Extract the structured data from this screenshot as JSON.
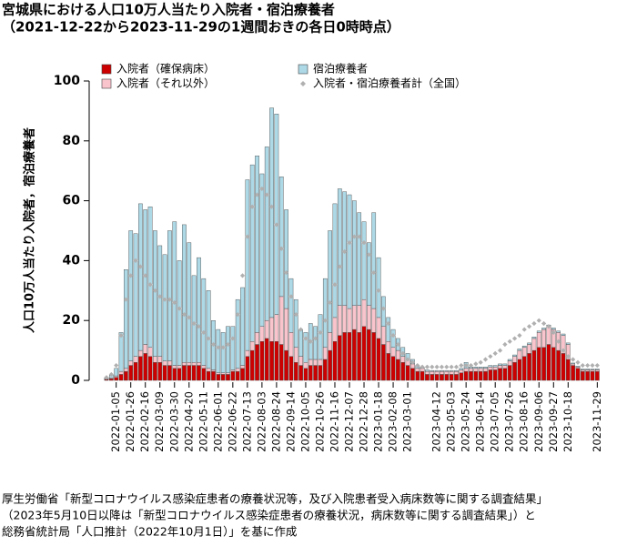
{
  "chart_data": {
    "type": "bar",
    "stacked": true,
    "title": [
      "宮城県における人口10万人当たり入院者・宿泊療養者",
      "（2021-12-22から2023-11-29の1週間おきの各日0時時点）"
    ],
    "y_label": "人口10万人当たり入院者，宿泊療養者",
    "ylim": [
      0,
      100
    ],
    "yticks": [
      0,
      20,
      40,
      60,
      80,
      100
    ],
    "grid": false,
    "categories": [
      null,
      null,
      "2022-01-05",
      null,
      null,
      "2022-01-26",
      null,
      null,
      "2022-02-16",
      null,
      null,
      "2022-03-09",
      null,
      null,
      "2022-03-30",
      null,
      null,
      "2022-04-20",
      null,
      null,
      "2022-05-11",
      null,
      null,
      "2022-06-01",
      null,
      null,
      "2022-06-22",
      null,
      null,
      "2022-07-13",
      null,
      null,
      "2022-08-03",
      null,
      null,
      "2022-08-24",
      null,
      null,
      "2022-09-14",
      null,
      null,
      "2022-10-05",
      null,
      null,
      "2022-10-26",
      null,
      null,
      "2022-11-16",
      null,
      null,
      "2022-12-07",
      null,
      null,
      "2022-12-28",
      null,
      null,
      "2023-01-18",
      null,
      null,
      "2023-02-08",
      null,
      null,
      "2023-03-01",
      null,
      null,
      null,
      null,
      null,
      "2023-04-12",
      null,
      null,
      "2023-05-03",
      null,
      null,
      "2023-05-24",
      null,
      null,
      "2023-06-14",
      null,
      null,
      "2023-07-05",
      null,
      null,
      "2023-07-26",
      null,
      null,
      "2023-08-16",
      null,
      null,
      "2023-09-06",
      null,
      null,
      "2023-09-27",
      null,
      null,
      "2023-10-18",
      null,
      null,
      null,
      null,
      null,
      "2023-11-29"
    ],
    "series": [
      {
        "name": "入院者（確保病床）",
        "color": "#cc0000",
        "values": [
          0.3,
          0.5,
          1,
          2,
          3,
          5,
          6,
          8,
          9,
          8,
          6,
          6,
          5,
          5,
          4,
          4,
          5,
          5,
          5,
          5,
          4,
          3,
          3,
          2,
          2,
          2,
          3,
          3,
          4,
          8,
          10,
          12,
          13,
          14,
          13,
          13,
          12,
          10,
          8,
          6,
          5,
          4,
          5,
          5,
          5,
          7,
          10,
          13,
          15,
          16,
          16,
          17,
          16,
          18,
          17,
          16,
          14,
          12,
          9,
          8,
          7,
          6,
          5,
          4,
          3,
          3,
          2,
          2,
          2,
          2,
          2,
          2,
          2,
          2.5,
          3,
          3,
          3,
          3,
          3,
          3.5,
          3.5,
          4,
          4,
          5,
          6,
          7,
          8,
          9,
          10,
          11,
          11,
          12,
          11,
          10,
          9,
          7,
          5,
          4,
          3,
          3,
          3,
          3
        ]
      },
      {
        "name": "入院者（それ以外）",
        "color": "#f9c4cc",
        "values": [
          0.2,
          0.3,
          0.5,
          1,
          1,
          1.5,
          2,
          2,
          3,
          3,
          2,
          2,
          1.5,
          1.5,
          1,
          1,
          1,
          1,
          1,
          1,
          1,
          1,
          0.5,
          0.5,
          0.5,
          0.5,
          0.5,
          1,
          1,
          2,
          3,
          4,
          5,
          6,
          8,
          9,
          16,
          14,
          8,
          5,
          3,
          2,
          2,
          2,
          2,
          4,
          6,
          8,
          10,
          9,
          8,
          8,
          9,
          9,
          8,
          8,
          7,
          6,
          4,
          3,
          3,
          2,
          2,
          1.5,
          1,
          1,
          1,
          1,
          1,
          1,
          1,
          1,
          1,
          1,
          1,
          1,
          1,
          1,
          1,
          1,
          1,
          1,
          1,
          1.5,
          2,
          3,
          3,
          3,
          4,
          5,
          6,
          6,
          6,
          6,
          6,
          5,
          0.5,
          0.5,
          0.5,
          0.5,
          0.5,
          0.5
        ]
      },
      {
        "name": "宿泊療養者",
        "color": "#add8e6",
        "values": [
          0.5,
          1,
          2.5,
          13,
          33,
          43.5,
          41,
          49,
          45,
          47,
          42,
          37,
          35.5,
          43.5,
          48,
          35,
          46,
          40,
          29,
          35,
          29,
          26,
          16.5,
          14.5,
          13.5,
          15.5,
          14.5,
          23,
          26,
          57,
          59,
          59,
          51,
          58,
          70,
          67,
          40,
          33,
          18,
          16,
          9,
          10,
          12,
          11,
          15,
          23,
          34,
          38,
          39,
          38,
          38,
          35,
          31,
          26,
          21,
          32,
          20,
          10,
          8,
          6,
          4,
          3,
          2,
          1.5,
          1,
          0.5,
          0.5,
          0.3,
          0.3,
          0.3,
          0.3,
          0.3,
          0.3,
          0.5,
          2,
          0.5,
          0.5,
          0.5,
          0.5,
          0.5,
          0.5,
          0.5,
          0.5,
          0.5,
          0.5,
          0.5,
          0.5,
          0.5,
          0.5,
          0.5,
          0.5,
          0.5,
          0.5,
          0.5,
          0.5,
          0.5,
          0.3,
          0.3,
          0.3,
          0.3,
          0.3,
          0.3
        ]
      },
      {
        "name": "入院者・宿泊療養者計（全国）",
        "color": "#b0b0b0",
        "type": "scatter",
        "values": [
          1,
          2,
          5,
          15,
          27,
          35,
          40,
          38,
          35,
          32,
          30,
          28,
          27,
          27,
          26,
          24,
          22,
          21,
          19,
          18,
          16,
          14,
          12,
          11,
          11,
          12,
          14,
          22,
          35,
          48,
          58,
          62,
          64,
          62,
          58,
          52,
          44,
          36,
          28,
          22,
          17,
          14,
          13,
          14,
          16,
          20,
          26,
          32,
          38,
          43,
          46,
          48,
          48,
          46,
          42,
          36,
          30,
          24,
          19,
          15,
          12,
          9,
          7,
          6,
          5,
          4.5,
          4.5,
          4.5,
          4.5,
          4.5,
          4.5,
          4.5,
          4.5,
          5,
          5,
          5,
          5.5,
          6,
          7,
          8,
          9,
          10,
          12,
          13,
          14,
          15,
          17,
          18,
          19,
          20,
          19,
          18,
          16,
          13,
          10,
          8,
          7,
          6,
          5,
          5,
          5,
          5
        ]
      }
    ],
    "source": [
      "厚生労働省「新型コロナウイルス感染症患者の療養状況等，及び入院患者受入病床数等に関する調査結果」",
      "（2023年5月10日以降は「新型コロナウイルス感染症患者の療養状況，病床数等に関する調査結果」）と",
      "総務省統計局「人口推計（2022年10月1日）」を基に作成"
    ]
  }
}
